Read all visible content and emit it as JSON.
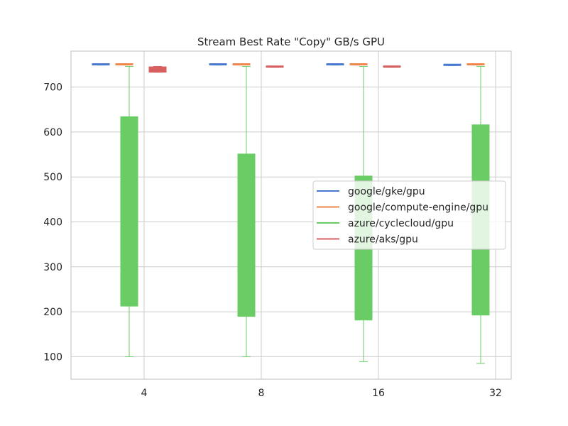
{
  "chart_data": {
    "type": "box",
    "title": "Stream Best Rate \"Copy\" GB/s GPU",
    "xlabel": "",
    "ylabel": "",
    "categories": [
      "4",
      "8",
      "16",
      "32"
    ],
    "ylim": [
      50,
      780
    ],
    "yticks": [
      100,
      200,
      300,
      400,
      500,
      600,
      700
    ],
    "grid": true,
    "legend_position": "center-right",
    "series": [
      {
        "name": "google/gke/gpu",
        "color": "#4878d0",
        "boxes": [
          {
            "category": "4",
            "whisker_low": 749,
            "q1": 749,
            "median": 749.5,
            "q3": 750,
            "whisker_high": 750
          },
          {
            "category": "8",
            "whisker_low": 749,
            "q1": 749,
            "median": 749.5,
            "q3": 750,
            "whisker_high": 750
          },
          {
            "category": "16",
            "whisker_low": 749,
            "q1": 749,
            "median": 749.5,
            "q3": 750,
            "whisker_high": 750
          },
          {
            "category": "32",
            "whisker_low": 748,
            "q1": 748,
            "median": 748.5,
            "q3": 749,
            "whisker_high": 749
          }
        ]
      },
      {
        "name": "google/compute-engine/gpu",
        "color": "#ee854a",
        "boxes": [
          {
            "category": "4",
            "whisker_low": 749,
            "q1": 749,
            "median": 749.5,
            "q3": 750,
            "whisker_high": 750
          },
          {
            "category": "8",
            "whisker_low": 749,
            "q1": 749,
            "median": 749.5,
            "q3": 750,
            "whisker_high": 750
          },
          {
            "category": "16",
            "whisker_low": 749,
            "q1": 749,
            "median": 749.5,
            "q3": 750,
            "whisker_high": 750
          },
          {
            "category": "32",
            "whisker_low": 749,
            "q1": 749,
            "median": 749.5,
            "q3": 750,
            "whisker_high": 750
          }
        ]
      },
      {
        "name": "azure/cyclecloud/gpu",
        "color": "#6acc64",
        "boxes": [
          {
            "category": "4",
            "whisker_low": 100,
            "q1": 213,
            "median": 213,
            "q3": 634,
            "whisker_high": 746
          },
          {
            "category": "8",
            "whisker_low": 100,
            "q1": 190,
            "median": 190,
            "q3": 551,
            "whisker_high": 746
          },
          {
            "category": "16",
            "whisker_low": 89,
            "q1": 182,
            "median": 182,
            "q3": 502,
            "whisker_high": 746
          },
          {
            "category": "32",
            "whisker_low": 85,
            "q1": 193,
            "median": 193,
            "q3": 616,
            "whisker_high": 746
          }
        ]
      },
      {
        "name": "azure/aks/gpu",
        "color": "#d65f5f",
        "boxes": [
          {
            "category": "4",
            "whisker_low": 733,
            "q1": 733,
            "median": 744,
            "q3": 745,
            "whisker_high": 746
          },
          {
            "category": "8",
            "whisker_low": 744,
            "q1": 744,
            "median": 744.5,
            "q3": 745,
            "whisker_high": 745
          },
          {
            "category": "16",
            "whisker_low": 744,
            "q1": 744,
            "median": 744.5,
            "q3": 745,
            "whisker_high": 745
          }
        ]
      }
    ]
  }
}
